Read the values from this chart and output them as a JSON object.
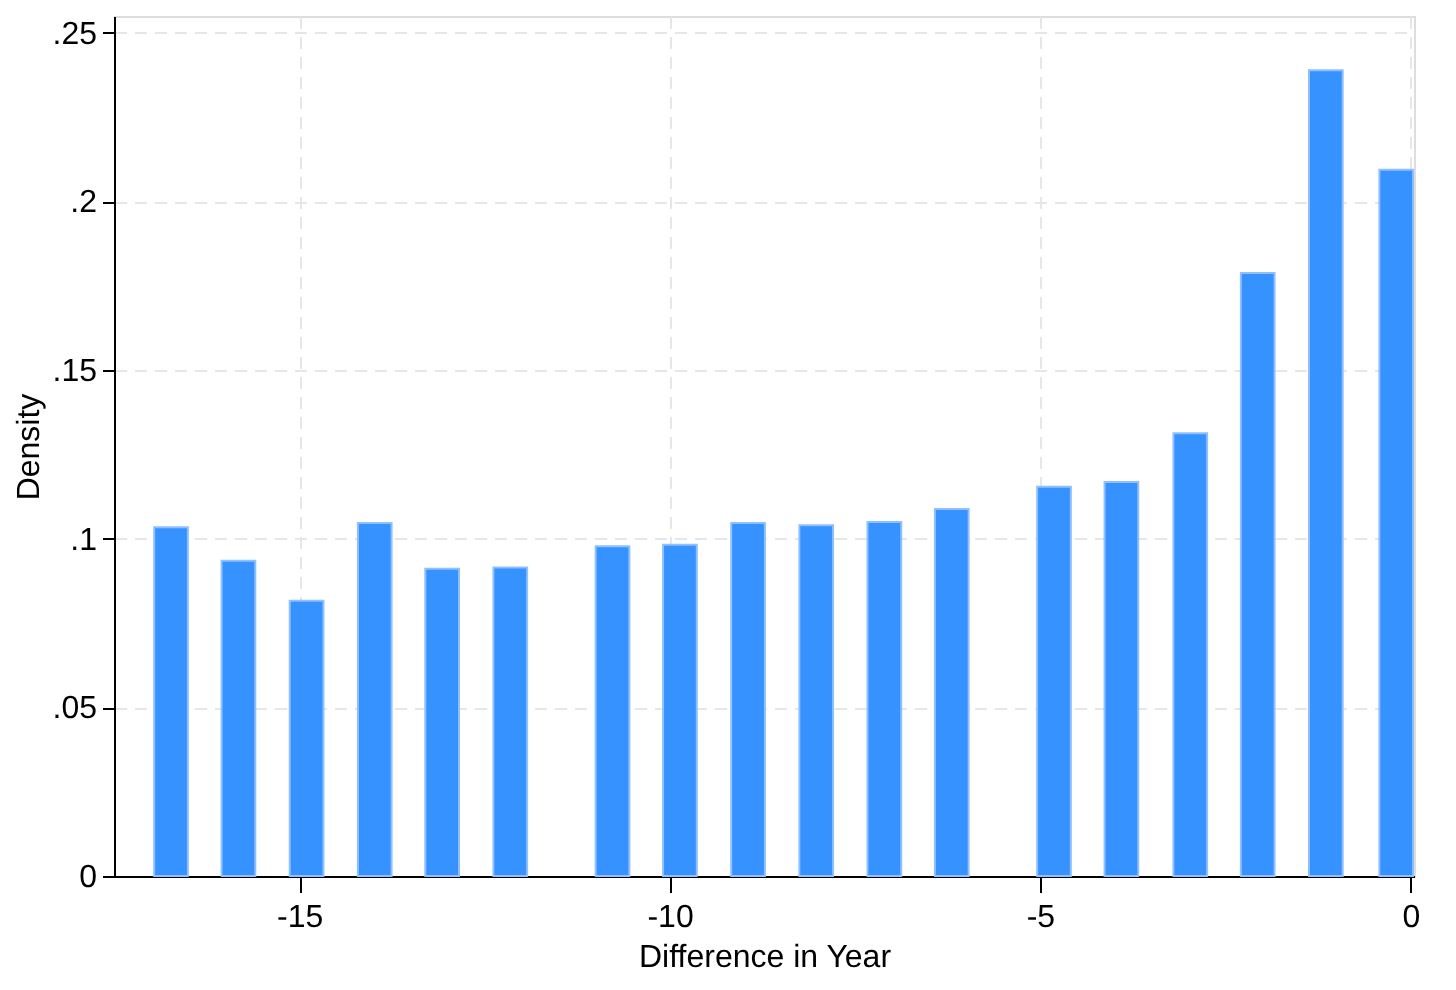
{
  "chart_data": {
    "type": "bar",
    "xlabel": "Difference in Year",
    "ylabel": "Density",
    "x": [
      -16.73,
      -15.82,
      -14.9,
      -13.98,
      -13.07,
      -12.15,
      -10.77,
      -9.86,
      -8.94,
      -8.02,
      -7.1,
      -6.19,
      -4.81,
      -3.9,
      -2.97,
      -2.06,
      -1.14,
      -0.19
    ],
    "values": [
      0.1034,
      0.0935,
      0.0816,
      0.1047,
      0.0911,
      0.0915,
      0.0978,
      0.0982,
      0.1047,
      0.104,
      0.105,
      0.1088,
      0.1154,
      0.1168,
      0.1313,
      0.1788,
      0.2389,
      0.2094
    ],
    "color": "#3592fe",
    "xlim": [
      -17.5,
      0.05
    ],
    "xticks": [
      -15,
      -10,
      -5,
      0
    ],
    "ylim": [
      0,
      0.255
    ],
    "yticks": [
      0,
      {
        "value": 0.05,
        "label": ".05"
      },
      {
        "value": 0.1,
        "label": ".1"
      },
      {
        "value": 0.15,
        "label": ".15"
      },
      {
        "value": 0.2,
        "label": ".2"
      },
      {
        "value": 0.25,
        "label": ".25"
      }
    ],
    "grid": true
  }
}
